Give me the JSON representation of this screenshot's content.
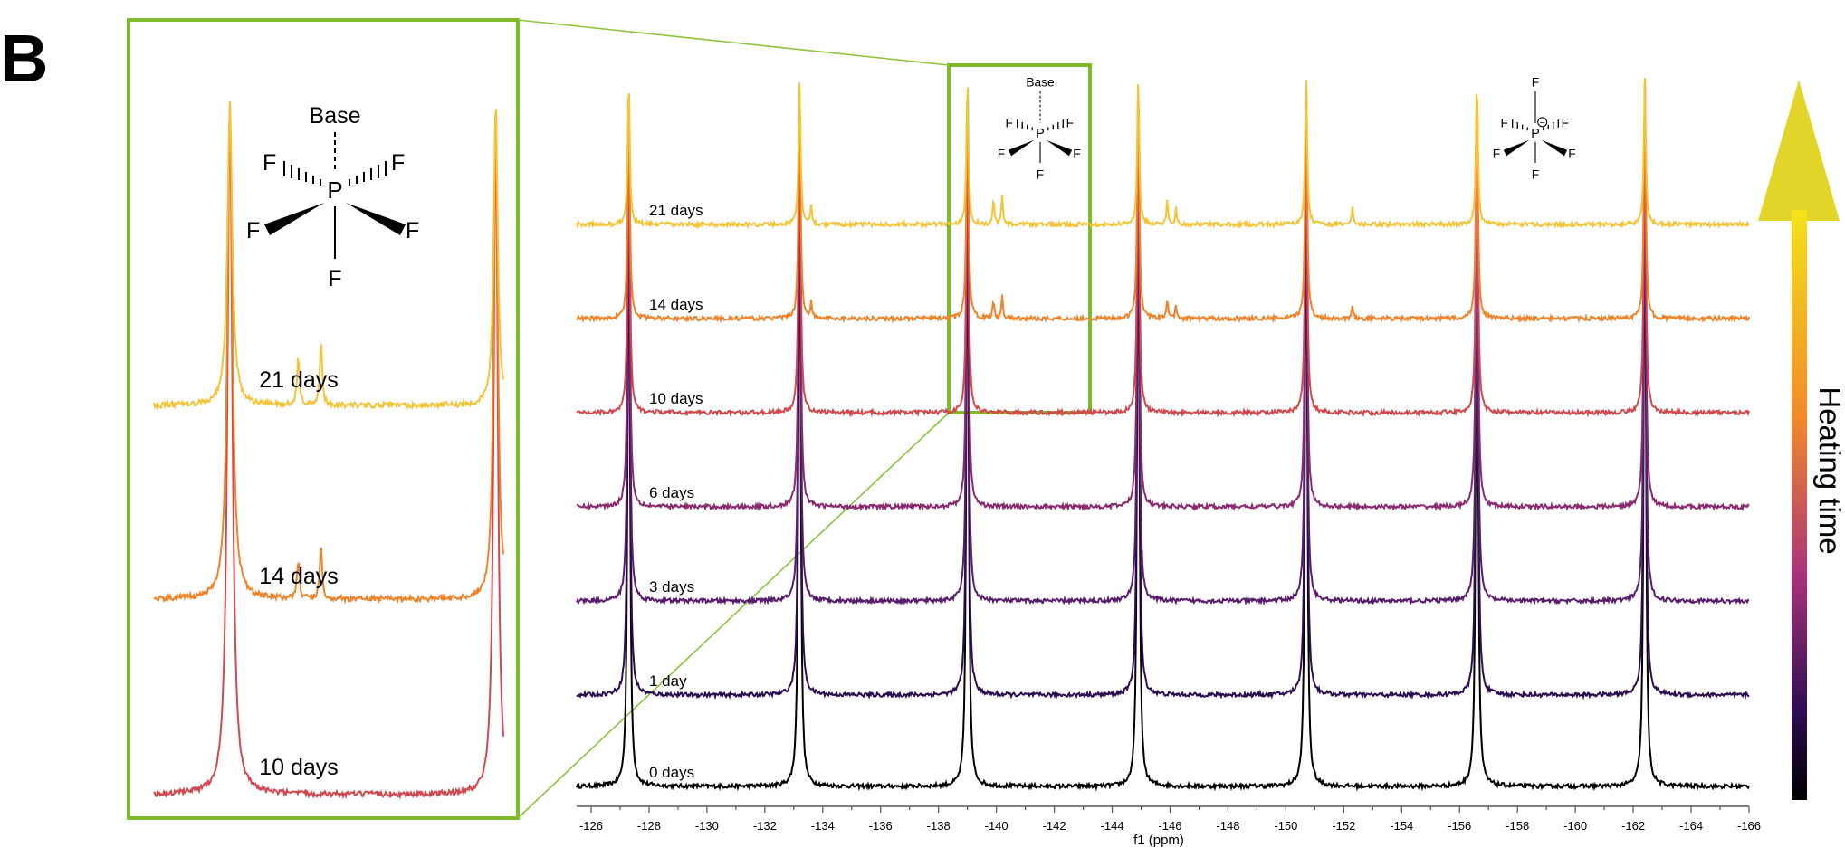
{
  "panel_label": "B",
  "colors": {
    "inset_frame": "#7fba2a",
    "gradient_top": "#f3e21a",
    "gradient_mid": "#f28a2a",
    "gradient_low": "#a8327a",
    "gradient_bottom": "#000000"
  },
  "chart_data": [
    {
      "type": "line",
      "title": "",
      "xlabel": "f1 (ppm)",
      "ylabel": "",
      "x_reversed": true,
      "xlim": [
        -125.5,
        -166
      ],
      "x_ticks": [
        -126,
        -128,
        -130,
        -132,
        -134,
        -136,
        -138,
        -140,
        -142,
        -144,
        -146,
        -148,
        -150,
        -152,
        -154,
        -156,
        -158,
        -160,
        -162,
        -164,
        -166
      ],
      "main_peaks_ppm": [
        -127.3,
        -133.2,
        -139.0,
        -144.9,
        -150.7,
        -156.6,
        -162.4
      ],
      "impurity_peaks_ppm": [
        -133.6,
        -139.9,
        -140.2,
        -145.9,
        -146.2,
        -152.3
      ],
      "series": [
        {
          "name": "0 days",
          "days": 0,
          "color": "#000000",
          "impurity_intensity": 0
        },
        {
          "name": "1 day",
          "days": 1,
          "color": "#2d0d52",
          "impurity_intensity": 0
        },
        {
          "name": "3 days",
          "days": 3,
          "color": "#581d6e",
          "impurity_intensity": 0
        },
        {
          "name": "6 days",
          "days": 6,
          "color": "#8a2b6f",
          "impurity_intensity": 0
        },
        {
          "name": "10 days",
          "days": 10,
          "color": "#d2484f",
          "impurity_intensity": 0
        },
        {
          "name": "14 days",
          "days": 14,
          "color": "#f0832a",
          "impurity_intensity": 0.8
        },
        {
          "name": "21 days",
          "days": 21,
          "color": "#f5c436",
          "impurity_intensity": 1.0
        }
      ],
      "gradient_axis_label": "Heating time"
    },
    {
      "type": "line",
      "title": "",
      "inset_of_ppm": [
        -138.0,
        -142.6
      ],
      "series": [
        {
          "name": "10 days",
          "color": "#d2484f",
          "impurity_intensity": 0
        },
        {
          "name": "14 days",
          "color": "#f0832a",
          "impurity_intensity": 0.8
        },
        {
          "name": "21 days",
          "color": "#f5c436",
          "impurity_intensity": 1.0
        }
      ]
    }
  ],
  "structure_base_adduct": {
    "base_label": "Base",
    "atom_center": "P",
    "atom_ligand": "F"
  },
  "structure_hexafluorophosphate": {
    "atom_center": "P",
    "atom_ligand": "F",
    "charge": "−"
  }
}
